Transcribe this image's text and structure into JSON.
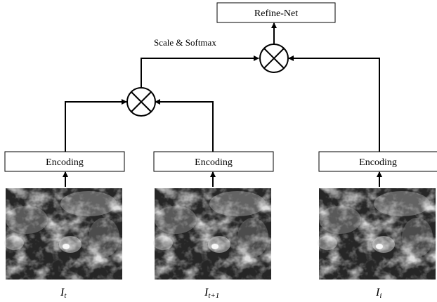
{
  "diagram": {
    "top_box": {
      "label": "Refine-Net"
    },
    "caption": "Scale & Softmax",
    "encoders": [
      {
        "label": "Encoding"
      },
      {
        "label": "Encoding"
      },
      {
        "label": "Encoding"
      }
    ],
    "inputs": [
      {
        "symbol": "I",
        "subscript": "t",
        "description": "satellite cloud image"
      },
      {
        "symbol": "I",
        "subscript": "t+1",
        "description": "satellite cloud image"
      },
      {
        "symbol": "I",
        "subscript": "i",
        "description": "satellite cloud image"
      }
    ],
    "operators": [
      {
        "name": "multiply-operator-lower",
        "glyph": "otimes"
      },
      {
        "name": "multiply-operator-upper",
        "glyph": "otimes"
      }
    ],
    "colors": {
      "stroke": "#000000",
      "box_fill": "#ffffff",
      "image_base": "#262626"
    }
  }
}
